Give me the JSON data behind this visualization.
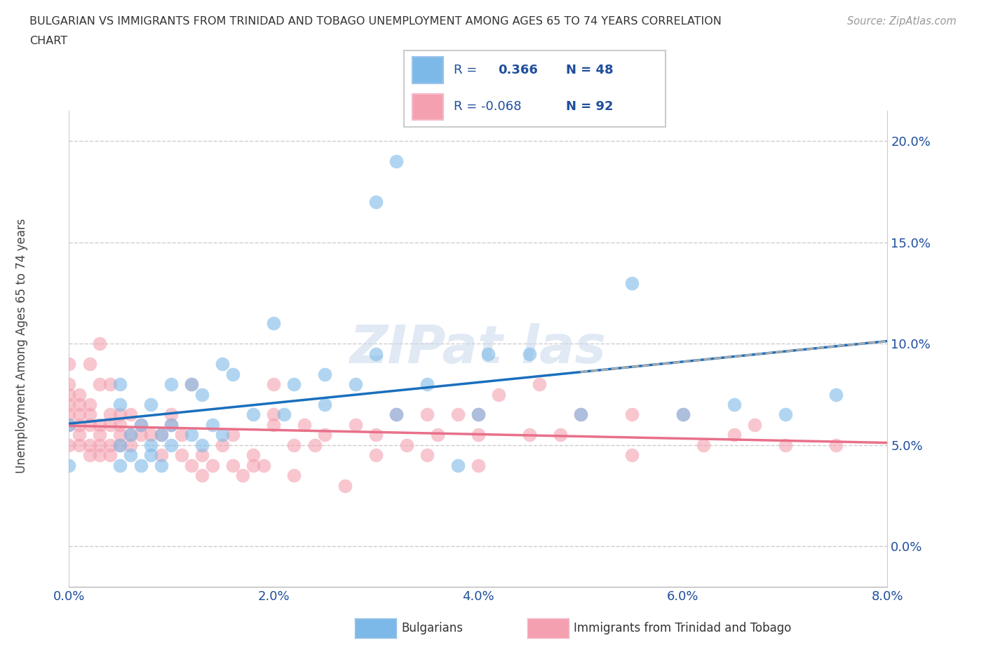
{
  "title_line1": "BULGARIAN VS IMMIGRANTS FROM TRINIDAD AND TOBAGO UNEMPLOYMENT AMONG AGES 65 TO 74 YEARS CORRELATION",
  "title_line2": "CHART",
  "source_text": "Source: ZipAtlas.com",
  "ylabel": "Unemployment Among Ages 65 to 74 years",
  "xlim": [
    0.0,
    0.08
  ],
  "ylim": [
    -0.02,
    0.215
  ],
  "bulgarian_color": "#7DB9E8",
  "immigrant_color": "#F4A0B0",
  "trend_bulgarian": "#1a6fbd",
  "trend_immigrant": "#E8708A",
  "trend_dash_color": "#AAAAAA",
  "bulgarian_R": 0.366,
  "bulgarian_N": 48,
  "immigrant_R": -0.068,
  "immigrant_N": 92,
  "legend_color": "#1F4E9C",
  "watermark_color": "#C8D8EC",
  "bulgarian_points": [
    [
      0.0,
      0.04
    ],
    [
      0.0,
      0.06
    ],
    [
      0.005,
      0.04
    ],
    [
      0.005,
      0.05
    ],
    [
      0.005,
      0.07
    ],
    [
      0.005,
      0.08
    ],
    [
      0.006,
      0.045
    ],
    [
      0.006,
      0.055
    ],
    [
      0.007,
      0.04
    ],
    [
      0.007,
      0.06
    ],
    [
      0.008,
      0.045
    ],
    [
      0.008,
      0.05
    ],
    [
      0.008,
      0.07
    ],
    [
      0.009,
      0.04
    ],
    [
      0.009,
      0.055
    ],
    [
      0.01,
      0.05
    ],
    [
      0.01,
      0.06
    ],
    [
      0.01,
      0.08
    ],
    [
      0.012,
      0.055
    ],
    [
      0.012,
      0.08
    ],
    [
      0.013,
      0.05
    ],
    [
      0.013,
      0.075
    ],
    [
      0.014,
      0.06
    ],
    [
      0.015,
      0.055
    ],
    [
      0.015,
      0.09
    ],
    [
      0.016,
      0.085
    ],
    [
      0.018,
      0.065
    ],
    [
      0.02,
      0.11
    ],
    [
      0.021,
      0.065
    ],
    [
      0.022,
      0.08
    ],
    [
      0.025,
      0.07
    ],
    [
      0.025,
      0.085
    ],
    [
      0.028,
      0.08
    ],
    [
      0.03,
      0.095
    ],
    [
      0.03,
      0.17
    ],
    [
      0.032,
      0.065
    ],
    [
      0.032,
      0.19
    ],
    [
      0.035,
      0.08
    ],
    [
      0.038,
      0.04
    ],
    [
      0.04,
      0.065
    ],
    [
      0.041,
      0.095
    ],
    [
      0.045,
      0.095
    ],
    [
      0.05,
      0.065
    ],
    [
      0.055,
      0.13
    ],
    [
      0.06,
      0.065
    ],
    [
      0.065,
      0.07
    ],
    [
      0.07,
      0.065
    ],
    [
      0.075,
      0.075
    ]
  ],
  "immigrant_points": [
    [
      0.0,
      0.05
    ],
    [
      0.0,
      0.06
    ],
    [
      0.0,
      0.065
    ],
    [
      0.0,
      0.07
    ],
    [
      0.0,
      0.075
    ],
    [
      0.0,
      0.08
    ],
    [
      0.0,
      0.09
    ],
    [
      0.001,
      0.05
    ],
    [
      0.001,
      0.055
    ],
    [
      0.001,
      0.06
    ],
    [
      0.001,
      0.065
    ],
    [
      0.001,
      0.07
    ],
    [
      0.001,
      0.075
    ],
    [
      0.002,
      0.045
    ],
    [
      0.002,
      0.05
    ],
    [
      0.002,
      0.06
    ],
    [
      0.002,
      0.065
    ],
    [
      0.002,
      0.07
    ],
    [
      0.002,
      0.09
    ],
    [
      0.003,
      0.045
    ],
    [
      0.003,
      0.05
    ],
    [
      0.003,
      0.055
    ],
    [
      0.003,
      0.06
    ],
    [
      0.003,
      0.08
    ],
    [
      0.003,
      0.1
    ],
    [
      0.004,
      0.045
    ],
    [
      0.004,
      0.05
    ],
    [
      0.004,
      0.06
    ],
    [
      0.004,
      0.065
    ],
    [
      0.004,
      0.08
    ],
    [
      0.005,
      0.05
    ],
    [
      0.005,
      0.055
    ],
    [
      0.005,
      0.06
    ],
    [
      0.005,
      0.065
    ],
    [
      0.006,
      0.05
    ],
    [
      0.006,
      0.055
    ],
    [
      0.006,
      0.065
    ],
    [
      0.007,
      0.055
    ],
    [
      0.007,
      0.06
    ],
    [
      0.008,
      0.055
    ],
    [
      0.009,
      0.045
    ],
    [
      0.009,
      0.055
    ],
    [
      0.01,
      0.06
    ],
    [
      0.01,
      0.065
    ],
    [
      0.011,
      0.045
    ],
    [
      0.011,
      0.055
    ],
    [
      0.012,
      0.04
    ],
    [
      0.012,
      0.08
    ],
    [
      0.013,
      0.035
    ],
    [
      0.013,
      0.045
    ],
    [
      0.014,
      0.04
    ],
    [
      0.015,
      0.05
    ],
    [
      0.016,
      0.04
    ],
    [
      0.016,
      0.055
    ],
    [
      0.017,
      0.035
    ],
    [
      0.018,
      0.04
    ],
    [
      0.018,
      0.045
    ],
    [
      0.019,
      0.04
    ],
    [
      0.02,
      0.06
    ],
    [
      0.02,
      0.065
    ],
    [
      0.02,
      0.08
    ],
    [
      0.022,
      0.035
    ],
    [
      0.022,
      0.05
    ],
    [
      0.023,
      0.06
    ],
    [
      0.024,
      0.05
    ],
    [
      0.025,
      0.055
    ],
    [
      0.027,
      0.03
    ],
    [
      0.028,
      0.06
    ],
    [
      0.03,
      0.045
    ],
    [
      0.03,
      0.055
    ],
    [
      0.032,
      0.065
    ],
    [
      0.033,
      0.05
    ],
    [
      0.035,
      0.045
    ],
    [
      0.035,
      0.065
    ],
    [
      0.036,
      0.055
    ],
    [
      0.038,
      0.065
    ],
    [
      0.04,
      0.04
    ],
    [
      0.04,
      0.055
    ],
    [
      0.04,
      0.065
    ],
    [
      0.042,
      0.075
    ],
    [
      0.045,
      0.055
    ],
    [
      0.046,
      0.08
    ],
    [
      0.048,
      0.055
    ],
    [
      0.05,
      0.065
    ],
    [
      0.055,
      0.045
    ],
    [
      0.055,
      0.065
    ],
    [
      0.06,
      0.065
    ],
    [
      0.062,
      0.05
    ],
    [
      0.065,
      0.055
    ],
    [
      0.067,
      0.06
    ],
    [
      0.07,
      0.05
    ],
    [
      0.075,
      0.05
    ]
  ],
  "ytick_vals": [
    0.0,
    0.05,
    0.1,
    0.15,
    0.2
  ],
  "ytick_labels": [
    "0.0%",
    "5.0%",
    "10.0%",
    "15.0%",
    "20.0%"
  ],
  "xtick_vals": [
    0.0,
    0.02,
    0.04,
    0.06,
    0.08
  ],
  "xtick_labels": [
    "0.0%",
    "2.0%",
    "4.0%",
    "6.0%",
    "8.0%"
  ]
}
